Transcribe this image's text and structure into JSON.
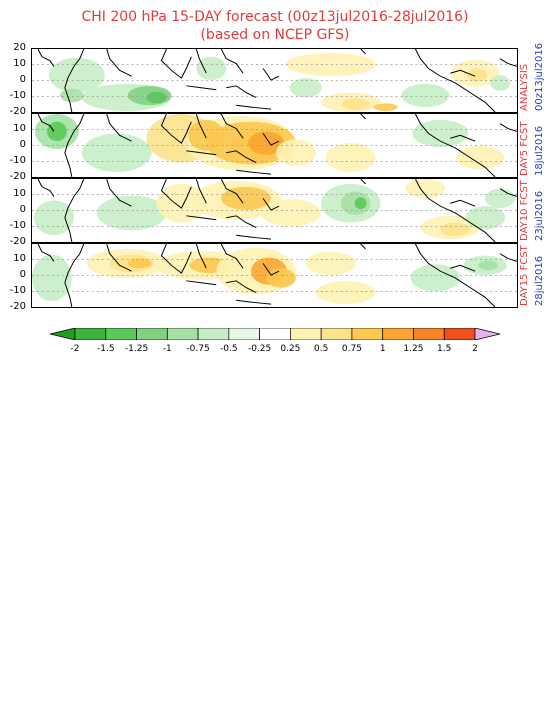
{
  "title": {
    "line1": "CHI 200 hPa 15-DAY forecast (00z13jul2016-28jul2016)",
    "line2": "(based on NCEP GFS)"
  },
  "y_ticks": [
    "20",
    "10",
    "0",
    "-10",
    "-20"
  ],
  "panels": [
    {
      "label": "ANALYSIS",
      "date": "00z13jul2016"
    },
    {
      "label": "DAY5 FCST",
      "date": "18jul2016"
    },
    {
      "label": "DAY10 FCST",
      "date": "23jul2016"
    },
    {
      "label": "DAY15 FCST",
      "date": "28jul2016"
    }
  ],
  "colorbar": {
    "levels": [
      "-2",
      "-1.5",
      "-1.25",
      "-1",
      "-0.75",
      "-0.5",
      "-0.25",
      "0.25",
      "0.5",
      "0.75",
      "1",
      "1.25",
      "1.5",
      "2"
    ],
    "colors": [
      "#1ea01e",
      "#3cb43c",
      "#5ac85a",
      "#82d282",
      "#a5e1a5",
      "#c6eec6",
      "#e6f8e6",
      "#ffffff",
      "#fdf2b4",
      "#fde28c",
      "#fcc850",
      "#fba532",
      "#f7832a",
      "#f0501e",
      "#e42a14"
    ],
    "over_color": "#e4b4f0"
  },
  "colors": {
    "title": "#e03b3b",
    "panel_label": "#e03b3b",
    "panel_date": "#1f44b4"
  }
}
